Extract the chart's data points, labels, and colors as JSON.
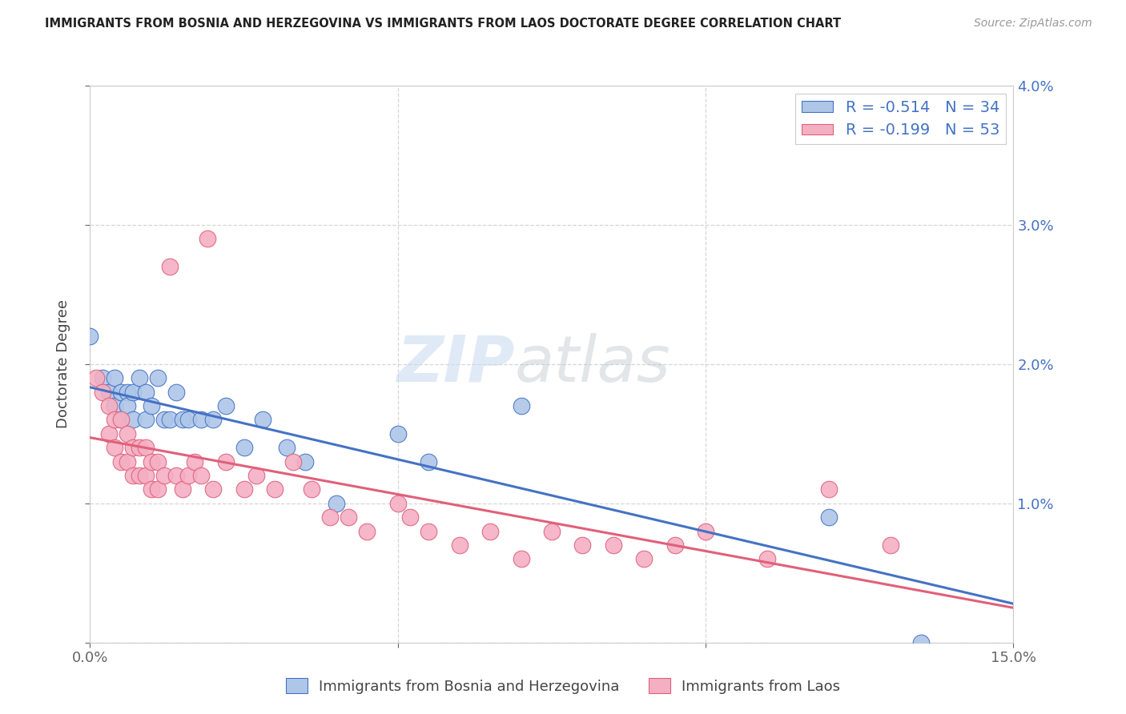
{
  "title": "IMMIGRANTS FROM BOSNIA AND HERZEGOVINA VS IMMIGRANTS FROM LAOS DOCTORATE DEGREE CORRELATION CHART",
  "source": "Source: ZipAtlas.com",
  "ylabel": "Doctorate Degree",
  "xlim": [
    0,
    0.15
  ],
  "ylim": [
    0,
    0.04
  ],
  "legend_bosnia_R": "-0.514",
  "legend_bosnia_N": "34",
  "legend_laos_R": "-0.199",
  "legend_laos_N": "53",
  "bosnia_color": "#aec6e8",
  "laos_color": "#f4afc3",
  "bosnia_line_color": "#4472c4",
  "laos_line_color": "#e0607a",
  "bosnia_x": [
    0.0,
    0.002,
    0.003,
    0.004,
    0.004,
    0.005,
    0.005,
    0.006,
    0.006,
    0.007,
    0.007,
    0.008,
    0.009,
    0.009,
    0.01,
    0.011,
    0.012,
    0.013,
    0.014,
    0.015,
    0.016,
    0.018,
    0.02,
    0.022,
    0.025,
    0.028,
    0.032,
    0.035,
    0.04,
    0.05,
    0.055,
    0.07,
    0.12,
    0.135
  ],
  "bosnia_y": [
    0.022,
    0.019,
    0.018,
    0.019,
    0.017,
    0.018,
    0.016,
    0.018,
    0.017,
    0.018,
    0.016,
    0.019,
    0.018,
    0.016,
    0.017,
    0.019,
    0.016,
    0.016,
    0.018,
    0.016,
    0.016,
    0.016,
    0.016,
    0.017,
    0.014,
    0.016,
    0.014,
    0.013,
    0.01,
    0.015,
    0.013,
    0.017,
    0.009,
    0.0
  ],
  "laos_x": [
    0.001,
    0.002,
    0.003,
    0.003,
    0.004,
    0.004,
    0.005,
    0.005,
    0.006,
    0.006,
    0.007,
    0.007,
    0.008,
    0.008,
    0.009,
    0.009,
    0.01,
    0.01,
    0.011,
    0.011,
    0.012,
    0.013,
    0.014,
    0.015,
    0.016,
    0.017,
    0.018,
    0.019,
    0.02,
    0.022,
    0.025,
    0.027,
    0.03,
    0.033,
    0.036,
    0.039,
    0.042,
    0.045,
    0.05,
    0.052,
    0.055,
    0.06,
    0.065,
    0.07,
    0.075,
    0.08,
    0.085,
    0.09,
    0.095,
    0.1,
    0.11,
    0.12,
    0.13
  ],
  "laos_y": [
    0.019,
    0.018,
    0.017,
    0.015,
    0.016,
    0.014,
    0.016,
    0.013,
    0.015,
    0.013,
    0.014,
    0.012,
    0.014,
    0.012,
    0.014,
    0.012,
    0.013,
    0.011,
    0.013,
    0.011,
    0.012,
    0.027,
    0.012,
    0.011,
    0.012,
    0.013,
    0.012,
    0.029,
    0.011,
    0.013,
    0.011,
    0.012,
    0.011,
    0.013,
    0.011,
    0.009,
    0.009,
    0.008,
    0.01,
    0.009,
    0.008,
    0.007,
    0.008,
    0.006,
    0.008,
    0.007,
    0.007,
    0.006,
    0.007,
    0.008,
    0.006,
    0.011,
    0.007
  ]
}
